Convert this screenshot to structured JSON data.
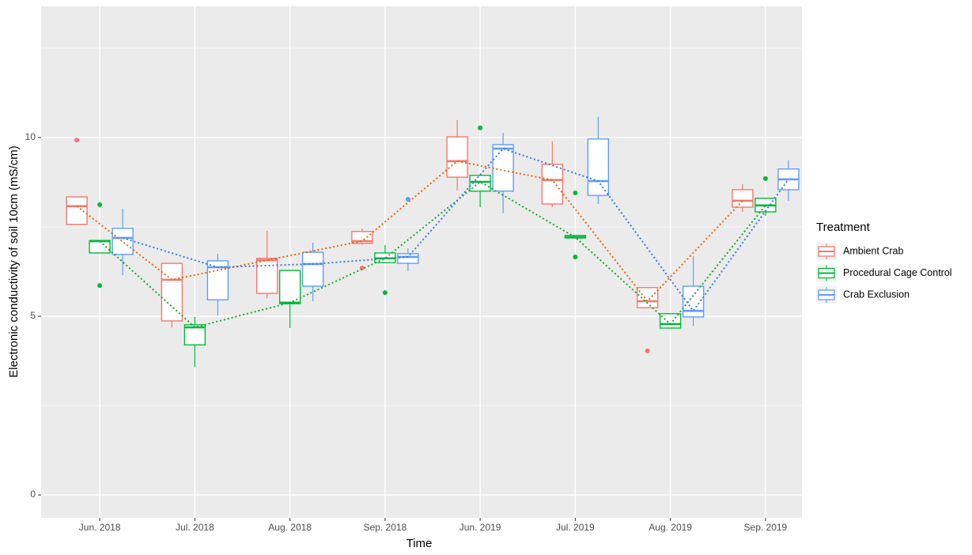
{
  "chart_data": {
    "type": "box",
    "x_label": "Time",
    "y_label": "Electronic conductivity of soil 10cm (mS/cm)",
    "legend_title": "Treatment",
    "categories": [
      "Jun. 2018",
      "Jul. 2018",
      "Aug. 2018",
      "Sep. 2018",
      "Jun. 2019",
      "Jul. 2019",
      "Aug. 2019",
      "Sep. 2019"
    ],
    "ylim": [
      -0.64,
      13.67
    ],
    "yticks": [
      0,
      5,
      10
    ],
    "grid": true,
    "legend": "right",
    "series": [
      {
        "name": "Ambient Crab",
        "color": "#F8766D",
        "line_color": "#E8650A",
        "boxes": [
          {
            "min": 7.57,
            "q1": 7.57,
            "median": 8.08,
            "q3": 8.34,
            "max": 8.34,
            "outliers": [
              9.93
            ]
          },
          {
            "min": 4.69,
            "q1": 4.87,
            "median": 6.02,
            "q3": 6.48,
            "max": 6.48,
            "outliers": []
          },
          {
            "min": 5.5,
            "q1": 5.64,
            "median": 6.57,
            "q3": 6.62,
            "max": 7.39,
            "outliers": []
          },
          {
            "min": 7.0,
            "q1": 7.04,
            "median": 7.1,
            "q3": 7.37,
            "max": 7.45,
            "outliers": [
              6.35
            ]
          },
          {
            "min": 8.52,
            "q1": 8.89,
            "median": 9.34,
            "q3": 10.02,
            "max": 10.49,
            "outliers": []
          },
          {
            "min": 8.05,
            "q1": 8.14,
            "median": 8.81,
            "q3": 9.25,
            "max": 9.89,
            "outliers": []
          },
          {
            "min": 5.24,
            "q1": 5.24,
            "median": 5.42,
            "q3": 5.8,
            "max": 5.8,
            "outliers": [
              4.03
            ]
          },
          {
            "min": 7.92,
            "q1": 8.05,
            "median": 8.23,
            "q3": 8.54,
            "max": 8.69,
            "outliers": []
          }
        ]
      },
      {
        "name": "Procedural Cage Control",
        "color": "#00BA38",
        "line_color": "#1FA23A",
        "boxes": [
          {
            "min": 6.77,
            "q1": 6.77,
            "median": 7.1,
            "q3": 7.12,
            "max": 7.12,
            "outliers": [
              8.12,
              5.86
            ]
          },
          {
            "min": 3.58,
            "q1": 4.2,
            "median": 4.69,
            "q3": 4.76,
            "max": 4.98,
            "outliers": []
          },
          {
            "min": 4.67,
            "q1": 5.35,
            "median": 5.38,
            "q3": 6.28,
            "max": 6.28,
            "outliers": []
          },
          {
            "min": 6.5,
            "q1": 6.5,
            "median": 6.62,
            "q3": 6.77,
            "max": 6.99,
            "outliers": [
              5.66
            ]
          },
          {
            "min": 8.05,
            "q1": 8.5,
            "median": 8.76,
            "q3": 8.94,
            "max": 8.94,
            "outliers": [
              10.27
            ]
          },
          {
            "min": 7.19,
            "q1": 7.19,
            "median": 7.21,
            "q3": 7.26,
            "max": 7.26,
            "outliers": [
              8.45,
              6.66
            ]
          },
          {
            "min": 4.67,
            "q1": 4.67,
            "median": 4.78,
            "q3": 5.07,
            "max": 5.07,
            "outliers": []
          },
          {
            "min": 7.81,
            "q1": 7.92,
            "median": 8.1,
            "q3": 8.3,
            "max": 8.3,
            "outliers": [
              8.85
            ]
          }
        ]
      },
      {
        "name": "Crab Exclusion",
        "color": "#619CFF",
        "line_color": "#3A7BD5",
        "boxes": [
          {
            "min": 6.15,
            "q1": 6.73,
            "median": 7.19,
            "q3": 7.46,
            "max": 8.01,
            "outliers": []
          },
          {
            "min": 5.02,
            "q1": 5.46,
            "median": 6.37,
            "q3": 6.55,
            "max": 6.75,
            "outliers": []
          },
          {
            "min": 5.42,
            "q1": 5.84,
            "median": 6.46,
            "q3": 6.79,
            "max": 7.06,
            "outliers": []
          },
          {
            "min": 6.26,
            "q1": 6.48,
            "median": 6.66,
            "q3": 6.75,
            "max": 6.9,
            "outliers": [
              8.27
            ]
          },
          {
            "min": 7.88,
            "q1": 8.5,
            "median": 9.69,
            "q3": 9.8,
            "max": 10.13,
            "outliers": []
          },
          {
            "min": 8.14,
            "q1": 8.38,
            "median": 8.78,
            "q3": 9.96,
            "max": 10.58,
            "outliers": []
          },
          {
            "min": 4.73,
            "q1": 4.98,
            "median": 5.15,
            "q3": 5.84,
            "max": 6.68,
            "outliers": []
          },
          {
            "min": 8.23,
            "q1": 8.54,
            "median": 8.83,
            "q3": 9.12,
            "max": 9.36,
            "outliers": []
          }
        ]
      }
    ]
  }
}
